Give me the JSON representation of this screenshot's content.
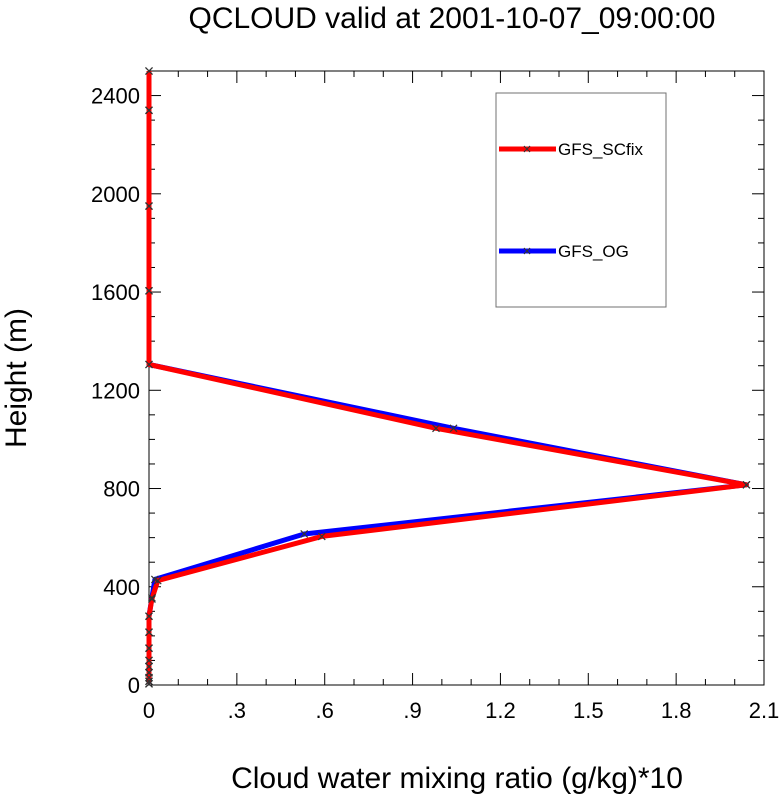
{
  "chart_data": {
    "type": "line",
    "title": "QCLOUD valid at 2001-10-07_09:00:00",
    "xlabel": "Cloud water mixing ratio (g/kg)*10",
    "ylabel": "Height (m)",
    "xlim": [
      0,
      2.1
    ],
    "ylim": [
      0,
      2500
    ],
    "xticks": [
      0,
      0.3,
      0.6,
      0.9,
      1.2,
      1.5,
      1.8,
      2.1
    ],
    "xtick_labels": [
      "0",
      ".3",
      ".6",
      ".9",
      "1.2",
      "1.5",
      "1.8",
      "2.1"
    ],
    "yticks": [
      0,
      400,
      800,
      1200,
      1600,
      2000,
      2400
    ],
    "ytick_labels": [
      "0",
      "400",
      "800",
      "1200",
      "1600",
      "2000",
      "2400"
    ],
    "grid": false,
    "legend_position": "top-right",
    "series": [
      {
        "name": "GFS_OG",
        "color": "#0000ff",
        "marker": "x",
        "points": [
          [
            0,
            5
          ],
          [
            0,
            15
          ],
          [
            0,
            30
          ],
          [
            0,
            50
          ],
          [
            0,
            75
          ],
          [
            0,
            100
          ],
          [
            0,
            150
          ],
          [
            0,
            215
          ],
          [
            0,
            280
          ],
          [
            0.01,
            355
          ],
          [
            0.02,
            430
          ],
          [
            0.53,
            615
          ],
          [
            2.04,
            815
          ],
          [
            1.04,
            1045
          ],
          [
            0,
            1305
          ],
          [
            0,
            1605
          ],
          [
            0,
            1950
          ],
          [
            0,
            2340
          ],
          [
            0,
            2500
          ]
        ]
      },
      {
        "name": "GFS_SCfix",
        "color": "#ff0000",
        "marker": "x",
        "points": [
          [
            0,
            5
          ],
          [
            0,
            15
          ],
          [
            0,
            30
          ],
          [
            0,
            50
          ],
          [
            0,
            75
          ],
          [
            0,
            100
          ],
          [
            0,
            150
          ],
          [
            0,
            215
          ],
          [
            0,
            280
          ],
          [
            0.01,
            350
          ],
          [
            0.03,
            425
          ],
          [
            0.59,
            605
          ],
          [
            2.04,
            815
          ],
          [
            0.98,
            1045
          ],
          [
            0,
            1305
          ],
          [
            0,
            1605
          ],
          [
            0,
            1950
          ],
          [
            0,
            2340
          ],
          [
            0,
            2500
          ]
        ]
      }
    ]
  }
}
